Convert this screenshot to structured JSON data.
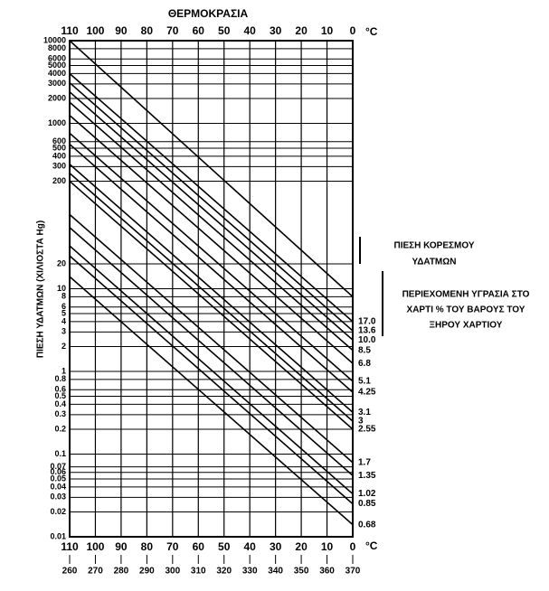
{
  "chart_data": {
    "type": "line",
    "x_label": "ΘΕΡΜΟΚΡΑΣΙΑ",
    "x_unit": "°C",
    "y_label": "ΠΙΕΣΗ ΥΔΑΤΜΩΝ (ΧΙΛΙΟΣΤΑ Hg)",
    "xlim": [
      110,
      0
    ],
    "xticks": [
      110,
      100,
      90,
      80,
      70,
      60,
      50,
      40,
      30,
      20,
      10,
      0
    ],
    "x2lim": [
      260,
      370
    ],
    "x2ticks": [
      260,
      270,
      280,
      290,
      300,
      310,
      320,
      330,
      340,
      350,
      360,
      370
    ],
    "ylim": [
      0.01,
      10000
    ],
    "yscale": "log",
    "yticks": [
      10000,
      8000,
      6000,
      5000,
      4000,
      3000,
      2000,
      1000,
      600,
      500,
      400,
      300,
      200,
      20,
      10,
      8,
      6,
      5,
      4,
      3,
      2,
      1,
      0.8,
      0.6,
      0.5,
      0.4,
      0.3,
      0.2,
      0.1,
      0.07,
      0.06,
      0.05,
      0.04,
      0.03,
      0.02,
      0.01
    ],
    "grid": true,
    "color": "#000000",
    "x": [
      110,
      0
    ],
    "series": [
      {
        "values": [
          10000,
          8
        ]
      },
      {
        "name": "17.0",
        "values": [
          4000,
          4.0
        ]
      },
      {
        "name": "13.6",
        "values": [
          3100,
          3.1
        ]
      },
      {
        "name": "10.0",
        "values": [
          2400,
          2.4
        ]
      },
      {
        "name": "8.5",
        "values": [
          1800,
          1.8
        ]
      },
      {
        "name": "6.8",
        "values": [
          1250,
          1.25
        ]
      },
      {
        "name": "5.1",
        "values": [
          760,
          0.76
        ]
      },
      {
        "name": "4.25",
        "values": [
          560,
          0.56
        ]
      },
      {
        "name": "3.1",
        "values": [
          320,
          0.32
        ]
      },
      {
        "name": "3",
        "values": [
          250,
          0.25
        ]
      },
      {
        "name": "2.55",
        "values": [
          200,
          0.2
        ]
      },
      {
        "name": "1.7",
        "values": [
          79,
          0.079
        ]
      },
      {
        "name": "1.35",
        "values": [
          55,
          0.055
        ]
      },
      {
        "name": "1.02",
        "values": [
          33,
          0.033
        ]
      },
      {
        "name": "0.85",
        "values": [
          25,
          0.025
        ]
      },
      {
        "name": "0.68",
        "values": [
          14,
          0.014
        ]
      }
    ],
    "annotations": {
      "saturation": [
        "ΠΙΕΣΗ ΚΟΡΕΣΜΟΥ",
        "ΥΔΑΤΜΩΝ"
      ],
      "moisture": [
        "ΠΕΡΙΕΧΟΜΕΝΗ ΥΓΡΑΣΙΑ ΣΤΟ",
        "ΧΑΡΤΙ % ΤΟΥ ΒΑΡΟΥΣ ΤΟΥ",
        "ΞΗΡΟΥ ΧΑΡΤΙΟΥ"
      ]
    }
  }
}
